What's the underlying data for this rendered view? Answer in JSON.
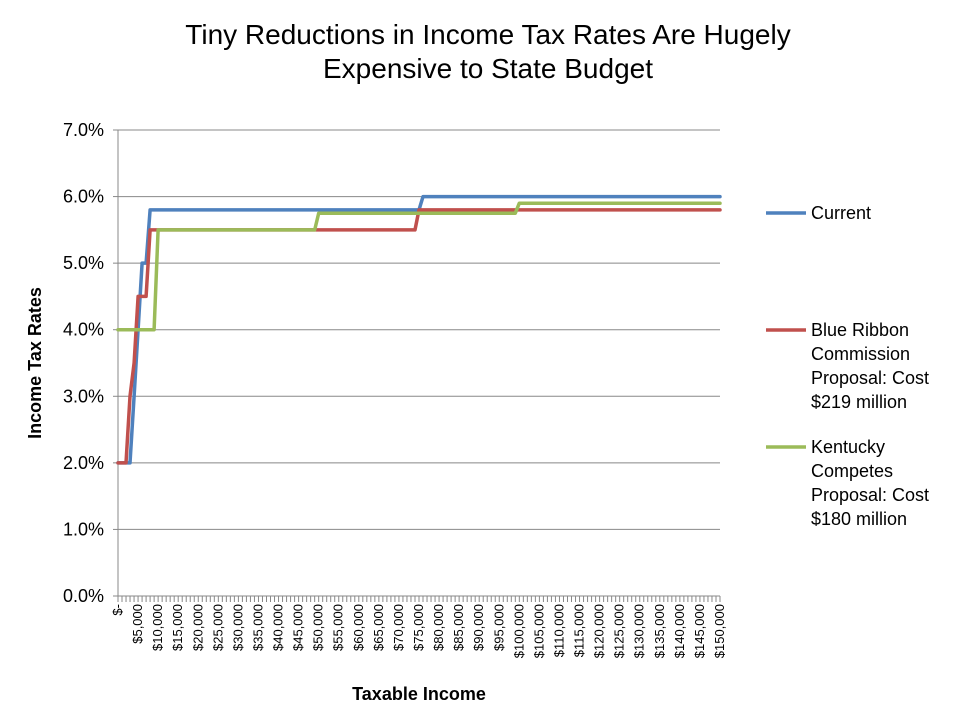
{
  "title_lines": [
    "Tiny Reductions in Income Tax Rates Are Hugely",
    "Expensive to State Budget"
  ],
  "chart_data": {
    "type": "line",
    "title": "Tiny Reductions in Income Tax Rates Are Hugely Expensive to State Budget",
    "xlabel": "Taxable Income",
    "ylabel": "Income Tax Rates",
    "ylim": [
      0,
      0.07
    ],
    "xlim": [
      0,
      150000
    ],
    "y_ticks": [
      "0.0%",
      "1.0%",
      "2.0%",
      "3.0%",
      "4.0%",
      "5.0%",
      "6.0%",
      "7.0%"
    ],
    "x_ticks": [
      "$-",
      "$5,000",
      "$10,000",
      "$15,000",
      "$20,000",
      "$25,000",
      "$30,000",
      "$35,000",
      "$40,000",
      "$45,000",
      "$50,000",
      "$55,000",
      "$60,000",
      "$65,000",
      "$70,000",
      "$75,000",
      "$80,000",
      "$85,000",
      "$90,000",
      "$95,000",
      "$100,000",
      "$105,000",
      "$110,000",
      "$115,000",
      "$120,000",
      "$125,000",
      "$130,000",
      "$135,000",
      "$140,000",
      "$145,000",
      "$150,000"
    ],
    "grid": "horizontal",
    "legend_position": "right",
    "series": [
      {
        "name": "Current",
        "color": "#4f81bd",
        "points": [
          [
            0,
            0.02
          ],
          [
            3000,
            0.02
          ],
          [
            4000,
            0.03
          ],
          [
            5000,
            0.04
          ],
          [
            6000,
            0.05
          ],
          [
            7000,
            0.05
          ],
          [
            8000,
            0.058
          ],
          [
            75000,
            0.058
          ],
          [
            76000,
            0.06
          ],
          [
            150000,
            0.06
          ]
        ]
      },
      {
        "name": "Blue Ribbon Commission Proposal: Cost $219 million",
        "color": "#c0504d",
        "points": [
          [
            0,
            0.02
          ],
          [
            2000,
            0.02
          ],
          [
            3000,
            0.03
          ],
          [
            4000,
            0.035
          ],
          [
            5000,
            0.045
          ],
          [
            7000,
            0.045
          ],
          [
            8000,
            0.055
          ],
          [
            74000,
            0.055
          ],
          [
            75000,
            0.058
          ],
          [
            150000,
            0.058
          ]
        ]
      },
      {
        "name": "Kentucky Competes Proposal: Cost $180 million",
        "color": "#9bbb59",
        "points": [
          [
            0,
            0.04
          ],
          [
            9000,
            0.04
          ],
          [
            10000,
            0.055
          ],
          [
            49000,
            0.055
          ],
          [
            50000,
            0.0575
          ],
          [
            99000,
            0.0575
          ],
          [
            100000,
            0.059
          ],
          [
            150000,
            0.059
          ]
        ]
      }
    ]
  },
  "legend": [
    {
      "lines": [
        "Current"
      ],
      "color": "#4f81bd"
    },
    {
      "lines": [
        "Blue Ribbon",
        "Commission",
        "Proposal: Cost",
        "$219 million"
      ],
      "color": "#c0504d"
    },
    {
      "lines": [
        "Kentucky",
        "Competes",
        "Proposal: Cost",
        "$180 million"
      ],
      "color": "#9bbb59"
    }
  ]
}
